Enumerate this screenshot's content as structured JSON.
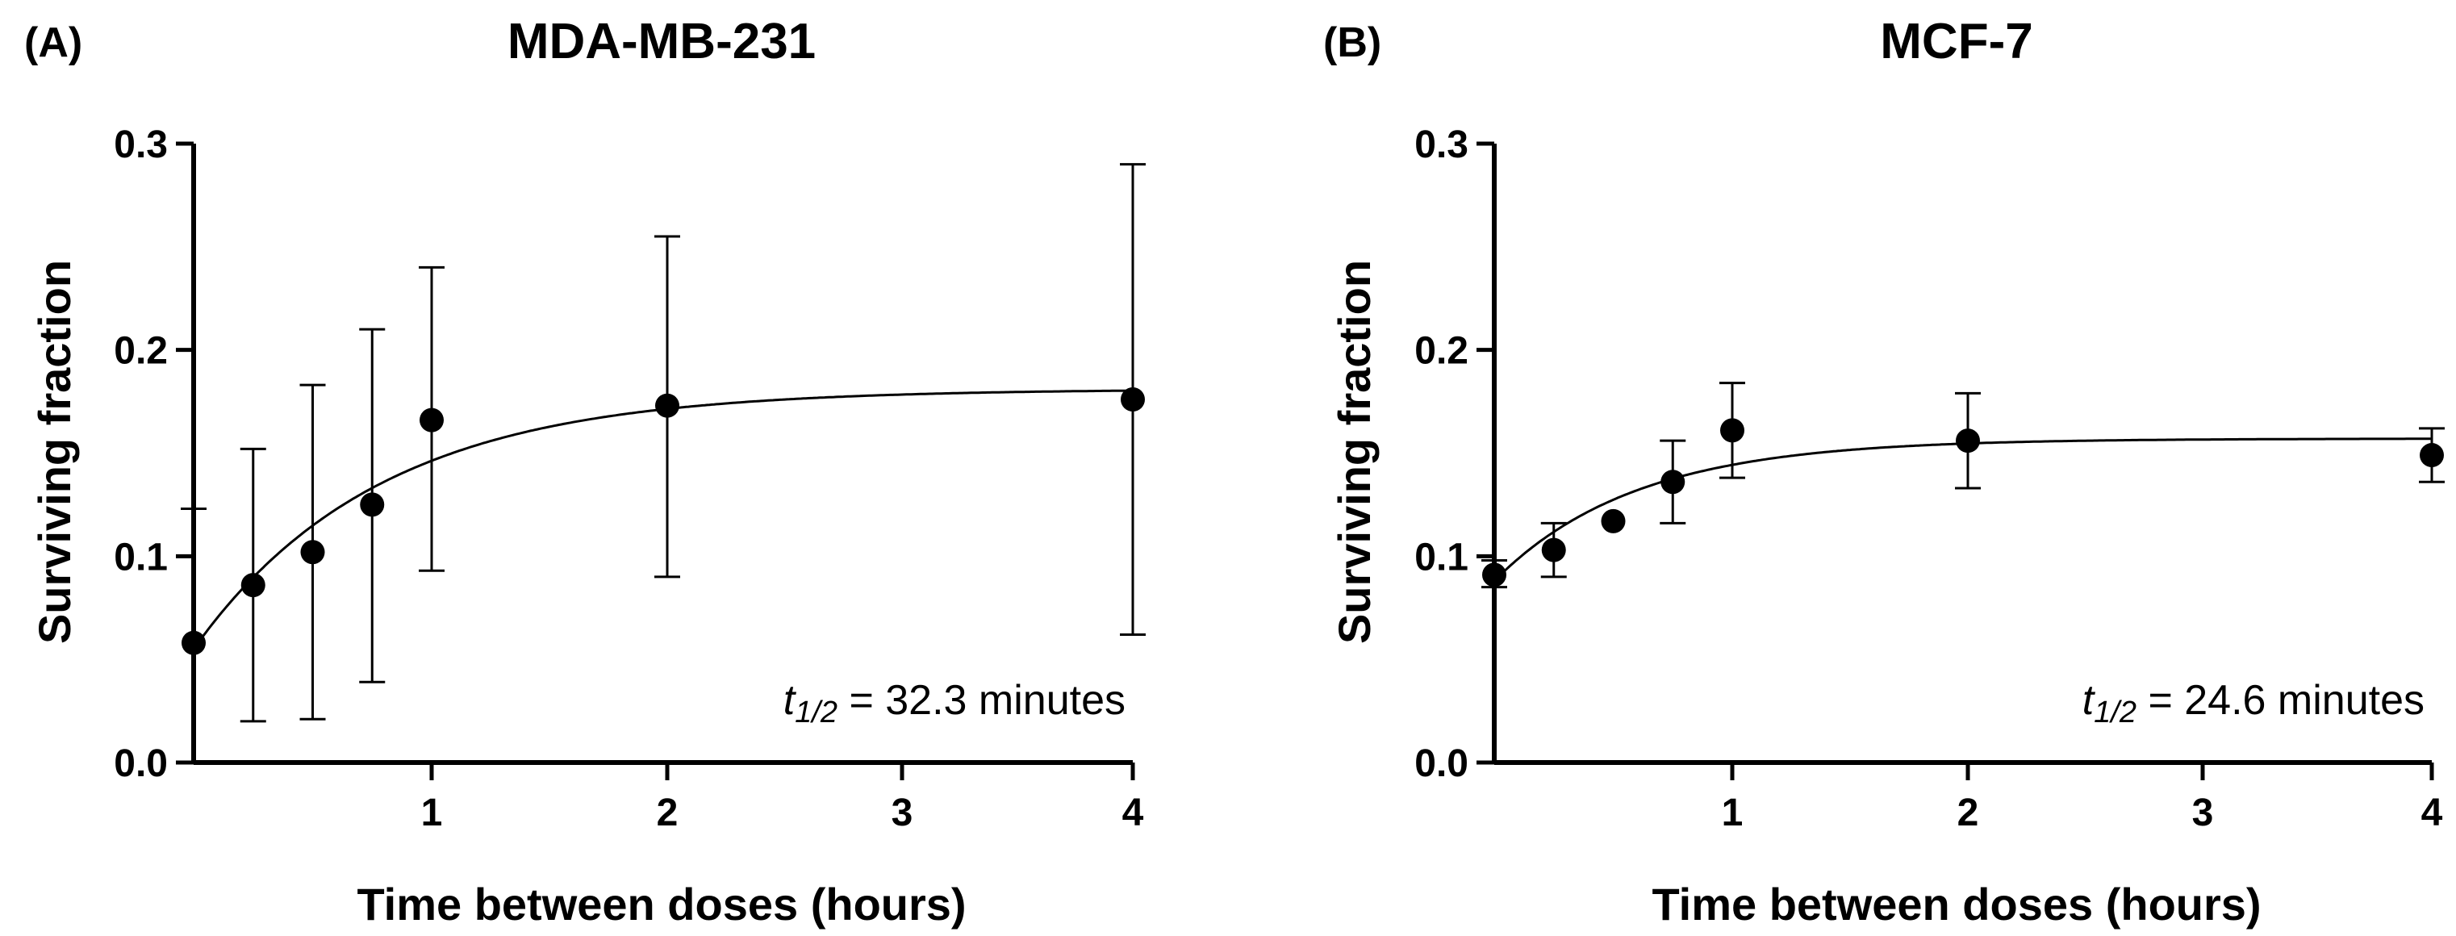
{
  "chart_data": [
    {
      "type": "scatter",
      "panel": "(A)",
      "title": "MDA-MB-231",
      "xlabel": "Time between doses (hours)",
      "ylabel": "Surviving fraction",
      "x_ticks": [
        1,
        2,
        3,
        4
      ],
      "x_tick_labels": [
        "1",
        "2",
        "3",
        "4"
      ],
      "y_ticks": [
        0.0,
        0.1,
        0.2,
        0.3
      ],
      "y_tick_labels": [
        "0.0",
        "0.1",
        "0.2",
        "0.3"
      ],
      "ylim": [
        0,
        0.3
      ],
      "x_axis_note": "x axis is segmented: 0 to 1 h at 0.25 h resolution, then 1, 2, 3, 4 h equally spaced",
      "annotation": {
        "symbol": "t",
        "subscript": "1/2",
        "text": " = 32.3 minutes"
      },
      "series": [
        {
          "name": "MDA-MB-231",
          "x": [
            0,
            0.25,
            0.5,
            0.75,
            1,
            2,
            4
          ],
          "y": [
            0.058,
            0.086,
            0.102,
            0.125,
            0.166,
            0.173,
            0.176
          ],
          "err_low": [
            0.0,
            0.02,
            0.021,
            0.039,
            0.093,
            0.09,
            0.062
          ],
          "err_high": [
            0.123,
            0.152,
            0.183,
            0.21,
            0.24,
            0.255,
            0.29
          ]
        }
      ],
      "fit": {
        "model": "one-phase association",
        "y0": 0.055,
        "plateau": 0.181,
        "half_life_hours": 0.538
      }
    },
    {
      "type": "scatter",
      "panel": "(B)",
      "title": "MCF-7",
      "xlabel": "Time between doses (hours)",
      "ylabel": "Surviving fraction",
      "x_ticks": [
        1,
        2,
        3,
        4
      ],
      "x_tick_labels": [
        "1",
        "2",
        "3",
        "4"
      ],
      "y_ticks": [
        0.0,
        0.1,
        0.2,
        0.3
      ],
      "y_tick_labels": [
        "0.0",
        "0.1",
        "0.2",
        "0.3"
      ],
      "ylim": [
        0,
        0.3
      ],
      "x_axis_note": "x axis is segmented: 0 to 1 h at 0.25 h resolution, then 1, 2, 3, 4 h equally spaced",
      "annotation": {
        "symbol": "t",
        "subscript": "1/2",
        "text": " = 24.6 minutes"
      },
      "series": [
        {
          "name": "MCF-7",
          "x": [
            0,
            0.25,
            0.5,
            0.75,
            1,
            2,
            4
          ],
          "y": [
            0.091,
            0.103,
            0.117,
            0.136,
            0.161,
            0.156,
            0.149
          ],
          "err_low": [
            0.085,
            0.09,
            null,
            0.116,
            0.138,
            0.133,
            0.136
          ],
          "err_high": [
            0.098,
            0.116,
            null,
            0.156,
            0.184,
            0.179,
            0.162
          ]
        }
      ],
      "fit": {
        "model": "one-phase association",
        "y0": 0.088,
        "plateau": 0.157,
        "half_life_hours": 0.41
      }
    }
  ]
}
